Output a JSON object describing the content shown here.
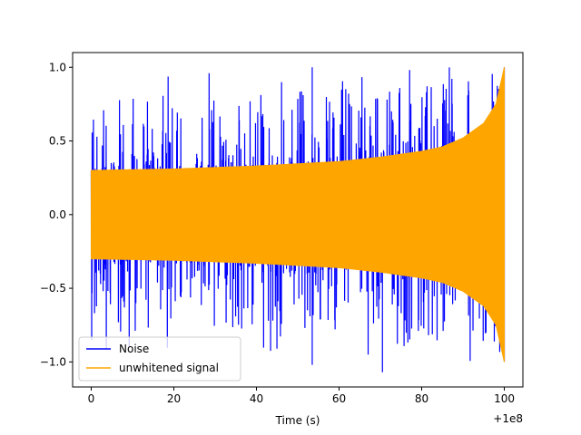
{
  "chart_data": {
    "type": "line",
    "title": "",
    "xlabel": "Time (s)",
    "ylabel": "",
    "x_offset_label": "+1e8",
    "xlim": [
      -4.5,
      104.5
    ],
    "ylim": [
      -1.17,
      1.1
    ],
    "x_ticks": [
      0,
      20,
      40,
      60,
      80,
      100
    ],
    "x_tick_labels": [
      "0",
      "20",
      "40",
      "60",
      "80",
      "100"
    ],
    "y_ticks": [
      -1.0,
      -0.5,
      0.0,
      0.5,
      1.0
    ],
    "y_tick_labels": [
      "−1.0",
      "−0.5",
      "0.0",
      "0.5",
      "1.0"
    ],
    "grid": false,
    "legend_position": "lower-left",
    "series": [
      {
        "name": "Noise",
        "color": "#0000ff",
        "description_values": {
          "x_range": [
            0,
            100
          ],
          "baseline_envelope": [
            [
              0,
              0.3
            ],
            [
              20,
              0.31
            ],
            [
              40,
              0.33
            ],
            [
              60,
              0.36
            ],
            [
              80,
              0.4
            ],
            [
              90,
              0.43
            ],
            [
              95,
              0.45
            ],
            [
              100,
              0.47
            ]
          ],
          "notable_peaks": [
            [
              53.5,
              1.0
            ],
            [
              70.5,
              -1.07
            ],
            [
              53.5,
              -1.02
            ],
            [
              100,
              1.0
            ],
            [
              100,
              -1.0
            ]
          ]
        }
      },
      {
        "name": "unwhitened signal",
        "color": "#ffa500",
        "description_values": {
          "x_range": [
            0,
            100
          ],
          "envelope": [
            [
              0,
              0.3
            ],
            [
              10,
              0.305
            ],
            [
              20,
              0.31
            ],
            [
              30,
              0.32
            ],
            [
              40,
              0.33
            ],
            [
              50,
              0.345
            ],
            [
              60,
              0.36
            ],
            [
              70,
              0.39
            ],
            [
              80,
              0.43
            ],
            [
              85,
              0.46
            ],
            [
              90,
              0.52
            ],
            [
              95,
              0.62
            ],
            [
              98,
              0.75
            ],
            [
              100,
              1.0
            ]
          ]
        }
      }
    ]
  }
}
